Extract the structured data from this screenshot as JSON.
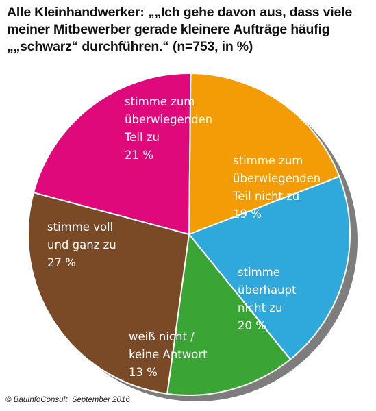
{
  "title": "Alle Kleinhandwerker: „„Ich gehe davon aus, dass viele meiner Mitbewerber gerade kleinere Aufträge häufig „„schwarz“ durchführen.“ (n=753, in %)",
  "source": "© BauInfoConsult, September 2016",
  "chart_data": {
    "type": "pie",
    "title": "Alle Kleinhandwerker: „„Ich gehe davon aus, dass viele meiner Mitbewerber gerade kleinere Aufträge häufig „„schwarz“ durchführen.“ (n=753, in %)",
    "unit": "%",
    "slices": [
      {
        "label_lines": [
          "stimme zum",
          "überwiegenden",
          "Teil zu"
        ],
        "value": 21,
        "value_label": "21 %",
        "color": "#e0097c",
        "text_color": "#ffffff"
      },
      {
        "label_lines": [
          "stimme zum",
          "überwiegenden",
          "Teil nicht zu"
        ],
        "value": 19,
        "value_label": "19 %",
        "color": "#f39c06",
        "text_color": "#ffffff"
      },
      {
        "label_lines": [
          "stimme",
          "überhaupt",
          "nicht zu"
        ],
        "value": 20,
        "value_label": "20 %",
        "color": "#2fa8dc",
        "text_color": "#ffffff"
      },
      {
        "label_lines": [
          "weiß nicht /",
          "keine Antwort"
        ],
        "value": 13,
        "value_label": "13 %",
        "color": "#3aa535",
        "text_color": "#ffffff"
      },
      {
        "label_lines": [
          "stimme voll",
          "und ganz zu"
        ],
        "value": 27,
        "value_label": "27 %",
        "color": "#7a4a27",
        "text_color": "#ffffff"
      }
    ]
  }
}
